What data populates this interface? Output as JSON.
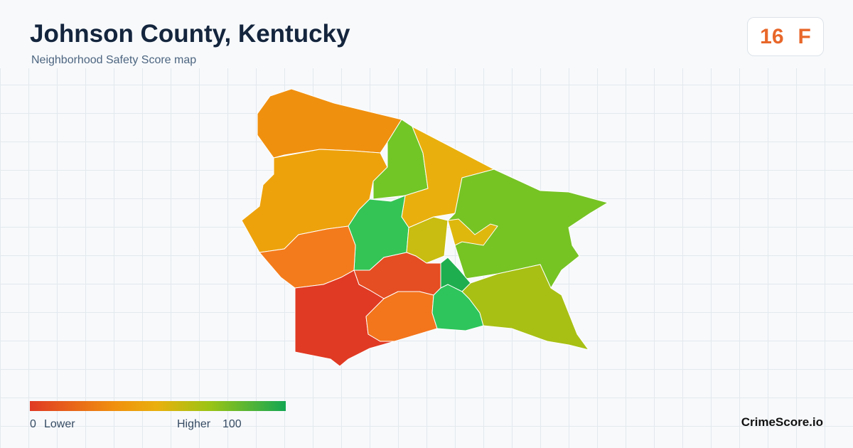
{
  "header": {
    "title": "Johnson County, Kentucky",
    "subtitle": "Neighborhood Safety Score map"
  },
  "score": {
    "value": 16,
    "grade": "F"
  },
  "legend": {
    "min": 0,
    "min_label": "Lower",
    "max_label": "Higher",
    "max": 100
  },
  "brand": "CrimeScore.io"
}
